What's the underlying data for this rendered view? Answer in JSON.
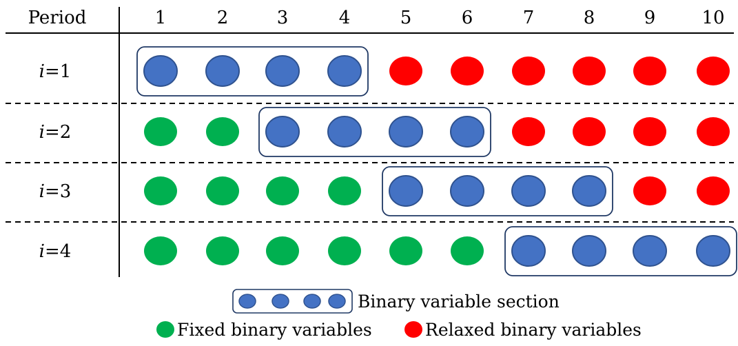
{
  "header": {
    "period_label": "Period",
    "periods": [
      "1",
      "2",
      "3",
      "4",
      "5",
      "6",
      "7",
      "8",
      "9",
      "10"
    ]
  },
  "rows": [
    {
      "var": "i",
      "eq": "=1",
      "cells": [
        "b",
        "b",
        "b",
        "b",
        "r",
        "r",
        "r",
        "r",
        "r",
        "r"
      ],
      "window": [
        1,
        4
      ]
    },
    {
      "var": "i",
      "eq": "=2",
      "cells": [
        "g",
        "g",
        "b",
        "b",
        "b",
        "b",
        "r",
        "r",
        "r",
        "r"
      ],
      "window": [
        3,
        6
      ]
    },
    {
      "var": "i",
      "eq": "=3",
      "cells": [
        "g",
        "g",
        "g",
        "g",
        "b",
        "b",
        "b",
        "b",
        "r",
        "r"
      ],
      "window": [
        5,
        8
      ]
    },
    {
      "var": "i",
      "eq": "=4",
      "cells": [
        "g",
        "g",
        "g",
        "g",
        "g",
        "g",
        "b",
        "b",
        "b",
        "b"
      ],
      "window": [
        7,
        10
      ]
    }
  ],
  "legend": {
    "section_label": "Binary variable section",
    "fixed_label": "Fixed binary variables",
    "relaxed_label": "Relaxed binary variables"
  },
  "colors": {
    "binary": "#4472c4",
    "binary_outline": "#2f528f",
    "fixed": "#00b050",
    "relaxed": "#ff0000",
    "window_outline": "#1f3864"
  }
}
